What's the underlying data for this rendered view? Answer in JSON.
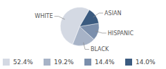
{
  "chart_data": {
    "type": "pie",
    "categories": [
      "WHITE",
      "BLACK",
      "HISPANIC",
      "ASIAN"
    ],
    "values": [
      52.4,
      19.2,
      14.4,
      14.0
    ],
    "value_labels": [
      "52.4%",
      "19.2%",
      "14.4%",
      "14.0%"
    ],
    "colors": [
      "#d4d9e3",
      "#a7b3c7",
      "#7b8fac",
      "#3b5b80"
    ],
    "legend": "bottom"
  }
}
